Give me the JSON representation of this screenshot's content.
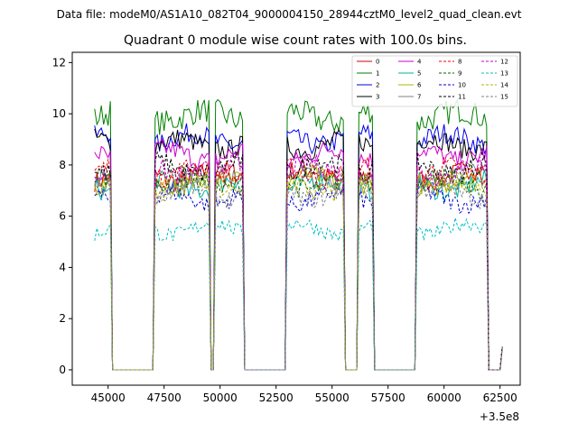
{
  "header": "Data file: modeM0/AS1A10_082T04_9000004150_28944cztM0_level2_quad_clean.evt",
  "chart_data": {
    "type": "line",
    "title": "Quadrant 0 module wise count rates with 100.0s bins.",
    "xlabel": "",
    "ylabel": "",
    "x_offset_label": "+3.5e8",
    "xlim": [
      43400,
      63400
    ],
    "ylim": [
      -0.6,
      12.4
    ],
    "xticks": [
      45000,
      47500,
      50000,
      52500,
      55000,
      57500,
      60000,
      62500
    ],
    "xtick_labels": [
      "45000",
      "47500",
      "50000",
      "52500",
      "55000",
      "57500",
      "60000",
      "62500"
    ],
    "yticks": [
      0,
      2,
      4,
      6,
      8,
      10,
      12
    ],
    "ytick_labels": [
      "0",
      "2",
      "4",
      "6",
      "8",
      "10",
      "12"
    ],
    "legend_position": "top-right",
    "segments": [
      {
        "start": 44400,
        "end": 45100
      },
      {
        "start": 47100,
        "end": 49500
      },
      {
        "start": 49800,
        "end": 51000
      },
      {
        "start": 53000,
        "end": 55500
      },
      {
        "start": 56200,
        "end": 56800
      },
      {
        "start": 58800,
        "end": 61900
      },
      {
        "start": 62600,
        "end": 62600
      }
    ],
    "series": [
      {
        "name": "0",
        "color": "#cc0000",
        "dash": "solid",
        "mean": 7.6,
        "amp": 0.4,
        "x": [],
        "y": []
      },
      {
        "name": "1",
        "color": "#008000",
        "dash": "solid",
        "mean": 9.9,
        "amp": 0.5,
        "x": [],
        "y": []
      },
      {
        "name": "2",
        "color": "#0000ee",
        "dash": "solid",
        "mean": 9.0,
        "amp": 0.4,
        "x": [],
        "y": []
      },
      {
        "name": "3",
        "color": "#000000",
        "dash": "solid",
        "mean": 8.8,
        "amp": 0.4,
        "x": [],
        "y": []
      },
      {
        "name": "4",
        "color": "#cc00cc",
        "dash": "solid",
        "mean": 8.4,
        "amp": 0.4,
        "x": [],
        "y": []
      },
      {
        "name": "5",
        "color": "#00b3a6",
        "dash": "solid",
        "mean": 7.2,
        "amp": 0.4,
        "x": [],
        "y": []
      },
      {
        "name": "6",
        "color": "#b3b300",
        "dash": "solid",
        "mean": 7.4,
        "amp": 0.4,
        "x": [],
        "y": []
      },
      {
        "name": "7",
        "color": "#808080",
        "dash": "solid",
        "mean": 7.5,
        "amp": 0.4,
        "x": [],
        "y": []
      },
      {
        "name": "8",
        "color": "#ff0000",
        "dash": "dashed",
        "mean": 7.7,
        "amp": 0.4,
        "x": [],
        "y": []
      },
      {
        "name": "9",
        "color": "#006400",
        "dash": "dashed",
        "mean": 7.3,
        "amp": 0.4,
        "x": [],
        "y": []
      },
      {
        "name": "10",
        "color": "#0000cd",
        "dash": "dashed",
        "mean": 6.7,
        "amp": 0.35,
        "x": [],
        "y": []
      },
      {
        "name": "11",
        "color": "#000000",
        "dash": "dashed",
        "mean": 7.9,
        "amp": 0.4,
        "x": [],
        "y": []
      },
      {
        "name": "12",
        "color": "#cc00cc",
        "dash": "dashed",
        "mean": 7.8,
        "amp": 0.4,
        "x": [],
        "y": []
      },
      {
        "name": "13",
        "color": "#00c0c0",
        "dash": "dashed",
        "mean": 5.5,
        "amp": 0.3,
        "x": [],
        "y": []
      },
      {
        "name": "14",
        "color": "#b3b300",
        "dash": "dashed",
        "mean": 7.1,
        "amp": 0.4,
        "x": [],
        "y": []
      },
      {
        "name": "15",
        "color": "#808080",
        "dash": "dashed",
        "mean": 6.9,
        "amp": 0.35,
        "x": [],
        "y": []
      }
    ]
  }
}
